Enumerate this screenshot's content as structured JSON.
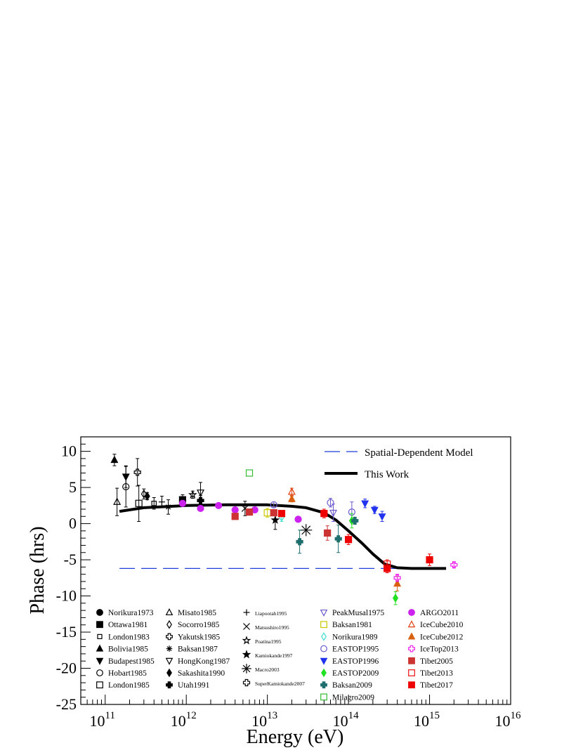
{
  "chart_data": {
    "type": "scatter",
    "title": "",
    "xlabel": "Energy (eV)",
    "ylabel": "Phase (hrs)",
    "xscale": "log",
    "xlim": [
      50000000000.0,
      1e+16
    ],
    "ylim": [
      -25,
      12
    ],
    "grid": false,
    "legend_position": "bottom and top-right",
    "x_ticks": [
      {
        "base": "10",
        "exp": "11",
        "value": 100000000000.0
      },
      {
        "base": "10",
        "exp": "12",
        "value": 1000000000000.0
      },
      {
        "base": "10",
        "exp": "13",
        "value": 10000000000000.0
      },
      {
        "base": "10",
        "exp": "14",
        "value": 100000000000000.0
      },
      {
        "base": "10",
        "exp": "15",
        "value": 1000000000000000.0
      },
      {
        "base": "10",
        "exp": "16",
        "value": 1e+16
      }
    ],
    "y_ticks": [
      {
        "label": "10",
        "value": 10
      },
      {
        "label": "5",
        "value": 5
      },
      {
        "label": "0",
        "value": 0
      },
      {
        "label": "-5",
        "value": -5
      },
      {
        "label": "-10",
        "value": -10
      },
      {
        "label": "-15",
        "value": -15
      },
      {
        "label": "-20",
        "value": -20
      },
      {
        "label": "-25",
        "value": -25
      }
    ],
    "lines": [
      {
        "name": "Spatial-Dependent Model",
        "style": "dashed",
        "color": "#1f3fd8",
        "points": [
          [
            150000000000.0,
            -6.2
          ],
          [
            2000000000000.0,
            -6.2
          ],
          [
            30000000000000.0,
            -6.2
          ],
          [
            300000000000000.0,
            -6.2
          ],
          [
            1500000000000000.0,
            -6.2
          ]
        ]
      },
      {
        "name": "This Work",
        "style": "solid",
        "color": "#000000",
        "points": [
          [
            150000000000.0,
            1.7
          ],
          [
            300000000000.0,
            2.2
          ],
          [
            1000000000000.0,
            2.5
          ],
          [
            3000000000000.0,
            2.6
          ],
          [
            10000000000000.0,
            2.6
          ],
          [
            20000000000000.0,
            2.4
          ],
          [
            30000000000000.0,
            2.2
          ],
          [
            50000000000000.0,
            1.5
          ],
          [
            70000000000000.0,
            0.5
          ],
          [
            100000000000000.0,
            -1.0
          ],
          [
            150000000000000.0,
            -2.8
          ],
          [
            200000000000000.0,
            -4.2
          ],
          [
            280000000000000.0,
            -5.6
          ],
          [
            400000000000000.0,
            -6.1
          ],
          [
            600000000000000.0,
            -6.2
          ],
          [
            1000000000000000.0,
            -6.2
          ],
          [
            1600000000000000.0,
            -6.2
          ]
        ]
      }
    ],
    "series": [
      {
        "name": "Norikura1973",
        "marker": "circle",
        "color": "#000000",
        "filled": true,
        "legend_size": "big",
        "points": []
      },
      {
        "name": "Ottawa1981",
        "marker": "square",
        "color": "#000000",
        "filled": true,
        "legend_size": "big",
        "points": [
          {
            "x": 900000000000.0,
            "y": 3.3,
            "err": 0.7
          }
        ]
      },
      {
        "name": "London1983",
        "marker": "square-small",
        "color": "#000000",
        "filled": false,
        "legend_size": "big",
        "points": [
          {
            "x": 400000000000.0,
            "y": 2.8,
            "err": 0.8
          }
        ]
      },
      {
        "name": "Bolivia1985",
        "marker": "triangle",
        "color": "#000000",
        "filled": true,
        "legend_size": "big",
        "points": [
          {
            "x": 130000000000.0,
            "y": 8.8,
            "err": 0.8
          }
        ]
      },
      {
        "name": "Budapest1985",
        "marker": "triangle-down",
        "color": "#000000",
        "filled": true,
        "legend_size": "big",
        "points": [
          {
            "x": 180000000000.0,
            "y": 6.5,
            "err": 1.5
          }
        ]
      },
      {
        "name": "Hobart1985",
        "marker": "circle",
        "color": "#000000",
        "filled": false,
        "legend_size": "big",
        "points": [
          {
            "x": 180000000000.0,
            "y": 5.1,
            "err": 2.8
          }
        ]
      },
      {
        "name": "London1985",
        "marker": "square",
        "color": "#000000",
        "filled": false,
        "legend_size": "big",
        "points": [
          {
            "x": 260000000000.0,
            "y": 2.8,
            "err": 2.5
          }
        ]
      },
      {
        "name": "Misato1985",
        "marker": "triangle",
        "color": "#000000",
        "filled": false,
        "legend_size": "big",
        "points": [
          {
            "x": 140000000000.0,
            "y": 3.0,
            "err": 1.9
          }
        ]
      },
      {
        "name": "Socorro1985",
        "marker": "diamond",
        "color": "#000000",
        "filled": false,
        "legend_size": "big",
        "points": [
          {
            "x": 300000000000.0,
            "y": 4.1,
            "err": 0.7
          }
        ]
      },
      {
        "name": "Yakutsk1985",
        "marker": "cross-open",
        "color": "#000000",
        "filled": false,
        "legend_size": "big",
        "points": [
          {
            "x": 250000000000.0,
            "y": 7.1,
            "err": 1.9
          }
        ]
      },
      {
        "name": "Baksan1987",
        "marker": "asterisk",
        "color": "#000000",
        "filled": false,
        "legend_size": "big",
        "points": [
          {
            "x": 600000000000.0,
            "y": 2.3,
            "err": 1.0
          }
        ]
      },
      {
        "name": "HongKong1987",
        "marker": "triangle-down",
        "color": "#000000",
        "filled": false,
        "legend_size": "big",
        "points": [
          {
            "x": 1500000000000.0,
            "y": 4.3,
            "err": 1.4
          }
        ]
      },
      {
        "name": "Sakashita1990",
        "marker": "diamond",
        "color": "#000000",
        "filled": true,
        "legend_size": "big",
        "points": [
          {
            "x": 330000000000.0,
            "y": 3.8,
            "err": 0.5
          }
        ]
      },
      {
        "name": "Utah1991",
        "marker": "cross",
        "color": "#000000",
        "filled": true,
        "legend_size": "big",
        "points": [
          {
            "x": 1500000000000.0,
            "y": 3.2,
            "err": 0.7
          }
        ]
      },
      {
        "name": "Liapootah1995",
        "marker": "plus",
        "color": "#000000",
        "filled": false,
        "legend_size": "small",
        "points": [
          {
            "x": 500000000000.0,
            "y": 3.0,
            "err": 0.8
          }
        ]
      },
      {
        "name": "Matsushiro1995",
        "marker": "x",
        "color": "#000000",
        "filled": false,
        "legend_size": "small",
        "points": [
          {
            "x": 5300000000000.0,
            "y": 2.1,
            "err": 1.0
          }
        ]
      },
      {
        "name": "Poatina1995",
        "marker": "star",
        "color": "#000000",
        "filled": false,
        "legend_size": "small",
        "points": [
          {
            "x": 1200000000000.0,
            "y": 4.0,
            "err": 0.5
          }
        ]
      },
      {
        "name": "Kamiokande1997",
        "marker": "star",
        "color": "#000000",
        "filled": true,
        "legend_size": "small",
        "points": [
          {
            "x": 12500000000000.0,
            "y": 0.5,
            "err": 1.3
          }
        ]
      },
      {
        "name": "Macro2003",
        "marker": "asterisk-big",
        "color": "#000000",
        "filled": false,
        "legend_size": "small",
        "points": [
          {
            "x": 30000000000000.0,
            "y": -0.9,
            "err": 0
          }
        ]
      },
      {
        "name": "SuperKamiokande2007",
        "marker": "cross-open",
        "color": "#000000",
        "filled": false,
        "legend_size": "small",
        "points": []
      },
      {
        "name": "PeakMusal1975",
        "marker": "triangle-down",
        "color": "#6a5acd",
        "filled": false,
        "legend_size": "med",
        "points": [
          {
            "x": 65000000000000.0,
            "y": 1.5,
            "err": 1.2
          }
        ]
      },
      {
        "name": "Baksan1981",
        "marker": "square",
        "color": "#c8c800",
        "filled": false,
        "legend_size": "med",
        "points": [
          {
            "x": 10000000000000.0,
            "y": 1.5,
            "err": 0.6
          }
        ]
      },
      {
        "name": "Norikura1989",
        "marker": "diamond",
        "color": "#40e0d0",
        "filled": false,
        "legend_size": "med",
        "points": [
          {
            "x": 15000000000000.0,
            "y": 0.9,
            "err": 0.6
          }
        ]
      },
      {
        "name": "EASTOP1995",
        "marker": "circle",
        "color": "#6a5acd",
        "filled": false,
        "legend_size": "med",
        "points": [
          {
            "x": 60000000000000.0,
            "y": 2.9,
            "err": 0.6
          },
          {
            "x": 110000000000000.0,
            "y": 1.6,
            "err": 1.4
          },
          {
            "x": 12000000000000.0,
            "y": 2.6,
            "err": 0.4
          }
        ]
      },
      {
        "name": "EASTOP1996",
        "marker": "triangle-down",
        "color": "#2233ee",
        "filled": true,
        "legend_size": "med",
        "points": [
          {
            "x": 160000000000000.0,
            "y": 2.8,
            "err": 0.6
          },
          {
            "x": 210000000000000.0,
            "y": 1.9,
            "err": 0.5
          },
          {
            "x": 260000000000000.0,
            "y": 1.0,
            "err": 0.7
          }
        ]
      },
      {
        "name": "EASTOP2009",
        "marker": "diamond",
        "color": "#22e022",
        "filled": true,
        "legend_size": "med",
        "points": [
          {
            "x": 110000000000000.0,
            "y": 0.4,
            "err": 1.0
          },
          {
            "x": 380000000000000.0,
            "y": -10.3,
            "err": 0.9
          }
        ]
      },
      {
        "name": "Baksan2009",
        "marker": "cross",
        "color": "#1e6e6e",
        "filled": true,
        "legend_size": "med",
        "points": [
          {
            "x": 25000000000000.0,
            "y": -2.5,
            "err": 1.6
          },
          {
            "x": 75000000000000.0,
            "y": -2.1,
            "err": 1.9
          },
          {
            "x": 120000000000000.0,
            "y": 0.4,
            "err": 0.5
          }
        ]
      },
      {
        "name": "Milagro2009",
        "marker": "square",
        "color": "#33bb33",
        "filled": false,
        "legend_size": "med",
        "points": [
          {
            "x": 6000000000000.0,
            "y": 7.0,
            "err": 0
          }
        ]
      },
      {
        "name": "ARGO2011",
        "marker": "circle",
        "color": "#cc22ee",
        "filled": true,
        "legend_size": "med",
        "points": [
          {
            "x": 900000000000.0,
            "y": 2.8,
            "err": 0.3
          },
          {
            "x": 1500000000000.0,
            "y": 2.1,
            "err": 0.3
          },
          {
            "x": 2500000000000.0,
            "y": 2.5,
            "err": 0.3
          },
          {
            "x": 4000000000000.0,
            "y": 1.9,
            "err": 0.3
          },
          {
            "x": 7000000000000.0,
            "y": 1.9,
            "err": 0.3
          },
          {
            "x": 24000000000000.0,
            "y": 0.6,
            "err": 0.3
          }
        ]
      },
      {
        "name": "IceCube2010",
        "marker": "triangle",
        "color": "#e04010",
        "filled": false,
        "legend_size": "med",
        "points": [
          {
            "x": 20000000000000.0,
            "y": 4.4,
            "err": 0.5
          }
        ]
      },
      {
        "name": "IceCube2012",
        "marker": "triangle",
        "color": "#d86010",
        "filled": true,
        "legend_size": "med",
        "points": [
          {
            "x": 20000000000000.0,
            "y": 3.4,
            "err": 0.4
          },
          {
            "x": 400000000000000.0,
            "y": -8.3,
            "err": 1.0
          }
        ]
      },
      {
        "name": "IceTop2013",
        "marker": "cross-open",
        "color": "#ee22ee",
        "filled": false,
        "legend_size": "med",
        "points": [
          {
            "x": 2000000000000000.0,
            "y": -5.7,
            "err": 0.3
          },
          {
            "x": 400000000000000.0,
            "y": -7.5,
            "err": 0.5
          }
        ]
      },
      {
        "name": "Tibet2005",
        "marker": "square",
        "color": "#cc3333",
        "filled": true,
        "legend_size": "med",
        "points": [
          {
            "x": 4000000000000.0,
            "y": 1.0,
            "err": 0.3
          },
          {
            "x": 6000000000000.0,
            "y": 1.6,
            "err": 0.3
          },
          {
            "x": 12000000000000.0,
            "y": 1.5,
            "err": 0.3
          },
          {
            "x": 55000000000000.0,
            "y": -1.3,
            "err": 1.0
          }
        ]
      },
      {
        "name": "Tibet2013",
        "marker": "square",
        "color": "#ee1111",
        "filled": false,
        "legend_size": "med",
        "points": [
          {
            "x": 300000000000000.0,
            "y": -5.6,
            "err": 0.6
          }
        ]
      },
      {
        "name": "Tibet2017",
        "marker": "square",
        "color": "#ee0000",
        "filled": true,
        "legend_size": "med",
        "points": [
          {
            "x": 15000000000000.0,
            "y": 1.4,
            "err": 0.4
          },
          {
            "x": 50000000000000.0,
            "y": 1.4,
            "err": 0.6
          },
          {
            "x": 100000000000000.0,
            "y": -2.2,
            "err": 0.7
          },
          {
            "x": 300000000000000.0,
            "y": -6.2,
            "err": 0.6
          },
          {
            "x": 1000000000000000.0,
            "y": -5.0,
            "err": 0.8
          }
        ]
      }
    ]
  }
}
